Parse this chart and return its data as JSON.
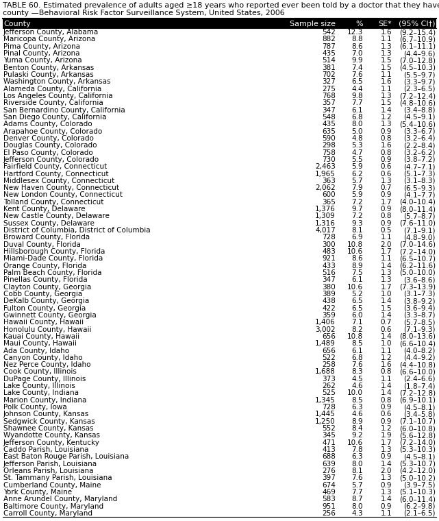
{
  "title_line1": "TABLE 60. Estimated prevalence of adults aged ≥18 years who reported ever been told by a doctor that they have diabetes, by",
  "title_line2": "county —Behavioral Risk Factor Surveillance System, United States, 2006",
  "col_headers": [
    "County",
    "Sample size",
    "%",
    "SE*",
    "(95% CI†)"
  ],
  "rows": [
    [
      "Jefferson County, Alabama",
      "542",
      "12.3",
      "1.6",
      "(9.2–15.4)"
    ],
    [
      "Maricopa County, Arizona",
      "882",
      "8.8",
      "1.1",
      "(6.7–10.9)"
    ],
    [
      "Pima County, Arizona",
      "787",
      "8.6",
      "1.3",
      "(6.1–11.1)"
    ],
    [
      "Pinal County, Arizona",
      "435",
      "7.0",
      "1.3",
      "(4.4–9.6)"
    ],
    [
      "Yuma County, Arizona",
      "514",
      "9.9",
      "1.5",
      "(7.0–12.8)"
    ],
    [
      "Benton County, Arkansas",
      "381",
      "7.4",
      "1.5",
      "(4.5–10.3)"
    ],
    [
      "Pulaski County, Arkansas",
      "702",
      "7.6",
      "1.1",
      "(5.5–9.7)"
    ],
    [
      "Washington County, Arkansas",
      "327",
      "6.5",
      "1.6",
      "(3.3–9.7)"
    ],
    [
      "Alameda County, California",
      "275",
      "4.4",
      "1.1",
      "(2.3–6.5)"
    ],
    [
      "Los Angeles County, California",
      "768",
      "9.8",
      "1.3",
      "(7.2–12.4)"
    ],
    [
      "Riverside County, California",
      "357",
      "7.7",
      "1.5",
      "(4.8–10.6)"
    ],
    [
      "San Bernardino County, California",
      "347",
      "6.1",
      "1.4",
      "(3.4–8.8)"
    ],
    [
      "San Diego County, California",
      "548",
      "6.8",
      "1.2",
      "(4.5–9.1)"
    ],
    [
      "Adams County, Colorado",
      "435",
      "8.0",
      "1.3",
      "(5.4–10.6)"
    ],
    [
      "Arapahoe County, Colorado",
      "635",
      "5.0",
      "0.9",
      "(3.3–6.7)"
    ],
    [
      "Denver County, Colorado",
      "590",
      "4.8",
      "0.8",
      "(3.2–6.4)"
    ],
    [
      "Douglas County, Colorado",
      "298",
      "5.3",
      "1.6",
      "(2.2–8.4)"
    ],
    [
      "El Paso County, Colorado",
      "758",
      "4.7",
      "0.8",
      "(3.2–6.2)"
    ],
    [
      "Jefferson County, Colorado",
      "730",
      "5.5",
      "0.9",
      "(3.8–7.2)"
    ],
    [
      "Fairfield County, Connecticut",
      "2,463",
      "5.9",
      "0.6",
      "(4.7–7.1)"
    ],
    [
      "Hartford County, Connecticut",
      "1,965",
      "6.2",
      "0.6",
      "(5.1–7.3)"
    ],
    [
      "Middlesex County, Connecticut",
      "363",
      "5.7",
      "1.3",
      "(3.1–8.3)"
    ],
    [
      "New Haven County, Connecticut",
      "2,062",
      "7.9",
      "0.7",
      "(6.5–9.3)"
    ],
    [
      "New London County, Connecticut",
      "600",
      "5.9",
      "0.9",
      "(4.1–7.7)"
    ],
    [
      "Tolland County, Connecticut",
      "365",
      "7.2",
      "1.7",
      "(4.0–10.4)"
    ],
    [
      "Kent County, Delaware",
      "1,376",
      "9.7",
      "0.9",
      "(8.0–11.4)"
    ],
    [
      "New Castle County, Delaware",
      "1,309",
      "7.2",
      "0.8",
      "(5.7–8.7)"
    ],
    [
      "Sussex County, Delaware",
      "1,316",
      "9.3",
      "0.9",
      "(7.6–11.0)"
    ],
    [
      "District of Columbia, District of Columbia",
      "4,017",
      "8.1",
      "0.5",
      "(7.1–9.1)"
    ],
    [
      "Broward County, Florida",
      "728",
      "6.9",
      "1.1",
      "(4.8–9.0)"
    ],
    [
      "Duval County, Florida",
      "300",
      "10.8",
      "2.0",
      "(7.0–14.6)"
    ],
    [
      "Hillsborough County, Florida",
      "483",
      "10.6",
      "1.7",
      "(7.2–14.0)"
    ],
    [
      "Miami-Dade County, Florida",
      "921",
      "8.6",
      "1.1",
      "(6.5–10.7)"
    ],
    [
      "Orange County, Florida",
      "433",
      "8.9",
      "1.4",
      "(6.2–11.6)"
    ],
    [
      "Palm Beach County, Florida",
      "516",
      "7.5",
      "1.3",
      "(5.0–10.0)"
    ],
    [
      "Pinellas County, Florida",
      "347",
      "6.1",
      "1.3",
      "(3.6–8.6)"
    ],
    [
      "Clayton County, Georgia",
      "380",
      "10.6",
      "1.7",
      "(7.3–13.9)"
    ],
    [
      "Cobb County, Georgia",
      "389",
      "5.2",
      "1.0",
      "(3.1–7.3)"
    ],
    [
      "DeKalb County, Georgia",
      "438",
      "6.5",
      "1.4",
      "(3.8–9.2)"
    ],
    [
      "Fulton County, Georgia",
      "422",
      "6.5",
      "1.5",
      "(3.6–9.4)"
    ],
    [
      "Gwinnett County, Georgia",
      "359",
      "6.0",
      "1.4",
      "(3.3–8.7)"
    ],
    [
      "Hawaii County, Hawaii",
      "1,406",
      "7.1",
      "0.7",
      "(5.7–8.5)"
    ],
    [
      "Honolulu County, Hawaii",
      "3,002",
      "8.2",
      "0.6",
      "(7.1–9.3)"
    ],
    [
      "Kauai County, Hawaii",
      "656",
      "10.8",
      "1.4",
      "(8.0–13.6)"
    ],
    [
      "Maui County, Hawaii",
      "1,489",
      "8.5",
      "1.0",
      "(6.6–10.4)"
    ],
    [
      "Ada County, Idaho",
      "656",
      "6.1",
      "1.1",
      "(4.0–8.2)"
    ],
    [
      "Canyon County, Idaho",
      "522",
      "6.8",
      "1.2",
      "(4.4–9.2)"
    ],
    [
      "Nez Perce County, Idaho",
      "258",
      "7.6",
      "1.6",
      "(4.4–10.8)"
    ],
    [
      "Cook County, Illinois",
      "1,688",
      "8.3",
      "0.8",
      "(6.6–10.0)"
    ],
    [
      "DuPage County, Illinois",
      "373",
      "4.5",
      "1.1",
      "(2.4–6.6)"
    ],
    [
      "Lake County, Illinois",
      "262",
      "4.6",
      "1.4",
      "(1.8–7.4)"
    ],
    [
      "Lake County, Indiana",
      "525",
      "10.0",
      "1.4",
      "(7.2–12.8)"
    ],
    [
      "Marion County, Indiana",
      "1,345",
      "8.5",
      "0.8",
      "(6.9–10.1)"
    ],
    [
      "Polk County, Iowa",
      "728",
      "6.3",
      "0.9",
      "(4.5–8.1)"
    ],
    [
      "Johnson County, Kansas",
      "1,445",
      "4.6",
      "0.6",
      "(3.4–5.8)"
    ],
    [
      "Sedgwick County, Kansas",
      "1,250",
      "8.9",
      "0.9",
      "(7.1–10.7)"
    ],
    [
      "Shawnee County, Kansas",
      "552",
      "8.4",
      "1.2",
      "(6.0–10.8)"
    ],
    [
      "Wyandotte County, Kansas",
      "345",
      "9.2",
      "1.9",
      "(5.6–12.8)"
    ],
    [
      "Jefferson County, Kentucky",
      "471",
      "10.6",
      "1.7",
      "(7.2–14.0)"
    ],
    [
      "Caddo Parish, Louisiana",
      "413",
      "7.8",
      "1.3",
      "(5.3–10.3)"
    ],
    [
      "East Baton Rouge Parish, Louisiana",
      "688",
      "6.3",
      "0.9",
      "(4.5–8.1)"
    ],
    [
      "Jefferson Parish, Louisiana",
      "639",
      "8.0",
      "1.4",
      "(5.3–10.7)"
    ],
    [
      "Orleans Parish, Louisiana",
      "276",
      "8.1",
      "2.0",
      "(4.2–12.0)"
    ],
    [
      "St. Tammany Parish, Louisiana",
      "397",
      "7.6",
      "1.3",
      "(5.0–10.2)"
    ],
    [
      "Cumberland County, Maine",
      "674",
      "5.7",
      "0.9",
      "(3.9–7.5)"
    ],
    [
      "York County, Maine",
      "469",
      "7.7",
      "1.3",
      "(5.1–10.3)"
    ],
    [
      "Anne Arundel County, Maryland",
      "583",
      "8.7",
      "1.4",
      "(6.0–11.4)"
    ],
    [
      "Baltimore County, Maryland",
      "951",
      "8.0",
      "0.9",
      "(6.2–9.8)"
    ],
    [
      "Carroll County, Maryland",
      "256",
      "4.3",
      "1.1",
      "(2.1–6.5)"
    ]
  ],
  "header_bg": "#000000",
  "header_fg": "#ffffff",
  "title_fontsize": 8.0,
  "header_fontsize": 8.0,
  "row_fontsize": 7.5,
  "fig_bg": "#ffffff",
  "col_aligns": [
    "left",
    "right",
    "right",
    "right",
    "right"
  ]
}
